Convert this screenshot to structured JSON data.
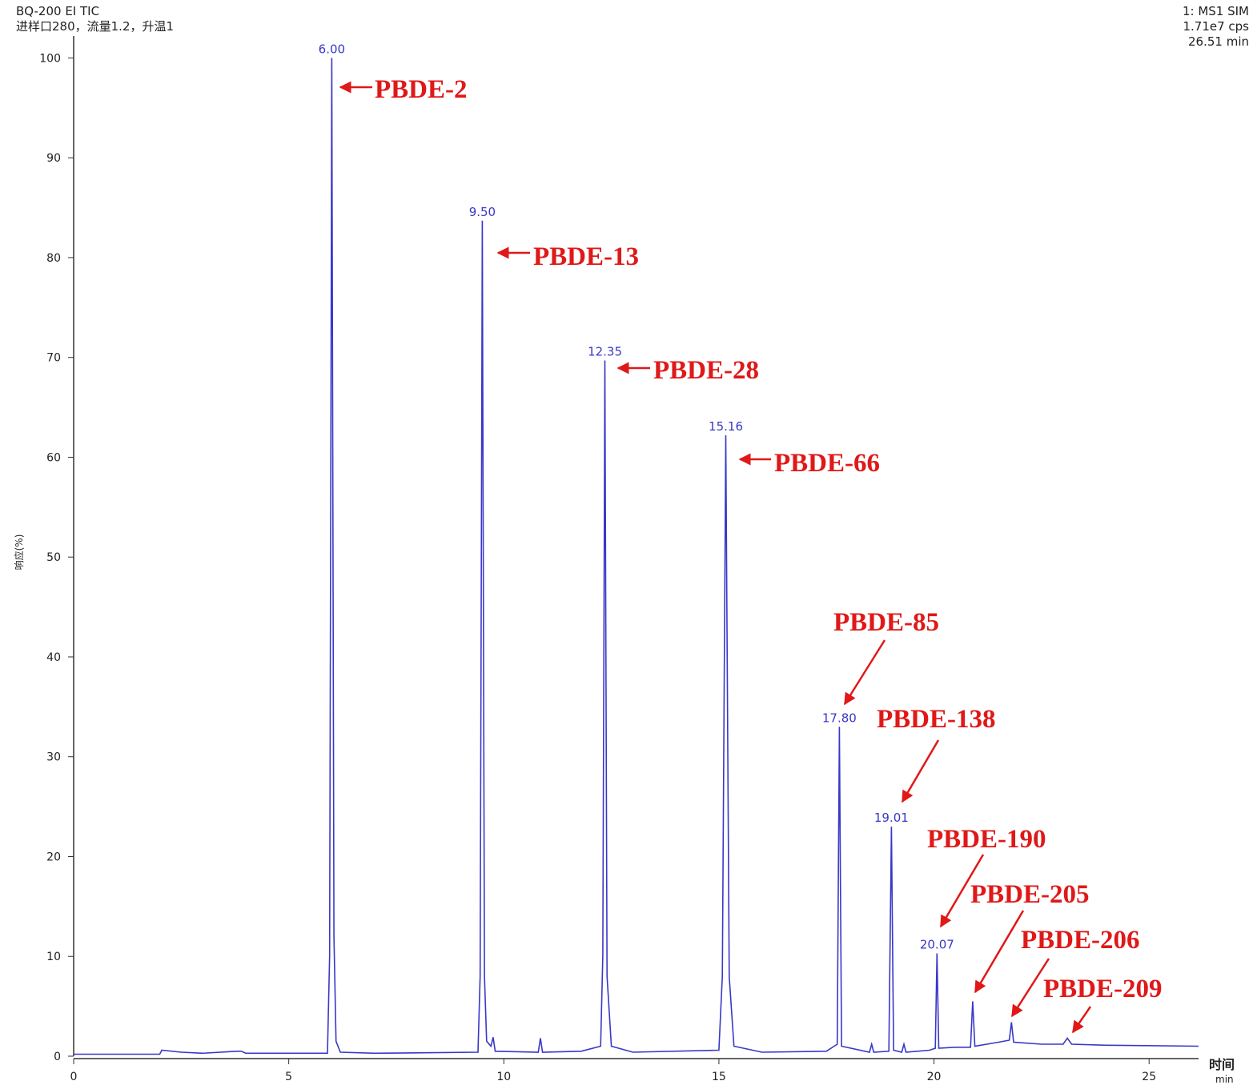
{
  "chart_data": {
    "type": "line",
    "title": "BQ-200 EI TIC",
    "subtitle": "进样口280，流量1.2，升温1",
    "info": [
      "1: MS1 SIM",
      "1.71e7 cps",
      "26.51 min"
    ],
    "ylabel": "响应(%)",
    "xlabel": "时间",
    "xunit": "min",
    "xlim": [
      0,
      26.15
    ],
    "ylim": [
      0,
      102.2
    ],
    "xticks": [
      0,
      5,
      10,
      15,
      20,
      25
    ],
    "yticks": [
      0,
      10,
      20,
      30,
      40,
      50,
      60,
      70,
      80,
      90,
      100
    ],
    "x": [
      0,
      2.0,
      2.05,
      2.5,
      3.0,
      3.8,
      3.9,
      4.0,
      5.9,
      5.95,
      6.0,
      6.05,
      6.1,
      6.2,
      7,
      9.4,
      9.45,
      9.5,
      9.55,
      9.6,
      9.7,
      9.75,
      9.8,
      10.8,
      10.85,
      10.9,
      11.8,
      12.25,
      12.3,
      12.35,
      12.4,
      12.5,
      13,
      15.0,
      15.08,
      15.16,
      15.24,
      15.35,
      16,
      17.5,
      17.75,
      17.8,
      17.85,
      18.5,
      18.55,
      18.6,
      18.95,
      19.01,
      19.06,
      19.25,
      19.3,
      19.35,
      19.9,
      20.03,
      20.07,
      20.11,
      20.5,
      20.85,
      20.9,
      20.95,
      21.5,
      21.75,
      21.8,
      21.85,
      22.5,
      23.0,
      23.1,
      23.2,
      24,
      26.15
    ],
    "series": [
      {
        "color": "#3838c8",
        "values": [
          0.2,
          0.2,
          0.6,
          0.4,
          0.3,
          0.5,
          0.5,
          0.3,
          0.3,
          10,
          100,
          12,
          1.5,
          0.4,
          0.3,
          0.4,
          8,
          83.7,
          8,
          1.5,
          1.0,
          1.9,
          0.5,
          0.4,
          1.8,
          0.4,
          0.5,
          1,
          10,
          69.7,
          8,
          1,
          0.4,
          0.6,
          8,
          62.2,
          8,
          1,
          0.4,
          0.5,
          1.2,
          33,
          1.0,
          0.4,
          1.2,
          0.4,
          0.5,
          23,
          0.6,
          0.4,
          1.2,
          0.4,
          0.6,
          0.8,
          10.3,
          0.8,
          0.9,
          0.9,
          5.5,
          1.0,
          1.4,
          1.6,
          3.4,
          1.4,
          1.2,
          1.2,
          1.8,
          1.2,
          1.1,
          1.0
        ]
      }
    ],
    "peak_labels": [
      {
        "x": 6.0,
        "y": 100,
        "label": "6.00"
      },
      {
        "x": 9.5,
        "y": 83.7,
        "label": "9.50"
      },
      {
        "x": 12.35,
        "y": 69.7,
        "label": "12.35"
      },
      {
        "x": 15.16,
        "y": 62.2,
        "label": "15.16"
      },
      {
        "x": 17.8,
        "y": 33,
        "label": "17.80"
      },
      {
        "x": 19.01,
        "y": 23,
        "label": "19.01"
      },
      {
        "x": 20.07,
        "y": 10.3,
        "label": "20.07"
      }
    ],
    "annotations": [
      "PBDE-2",
      "PBDE-13",
      "PBDE-28",
      "PBDE-66",
      "PBDE-85",
      "PBDE-138",
      "PBDE-190",
      "PBDE-205",
      "PBDE-206",
      "PBDE-209"
    ],
    "annotation_color": "#e01818"
  }
}
